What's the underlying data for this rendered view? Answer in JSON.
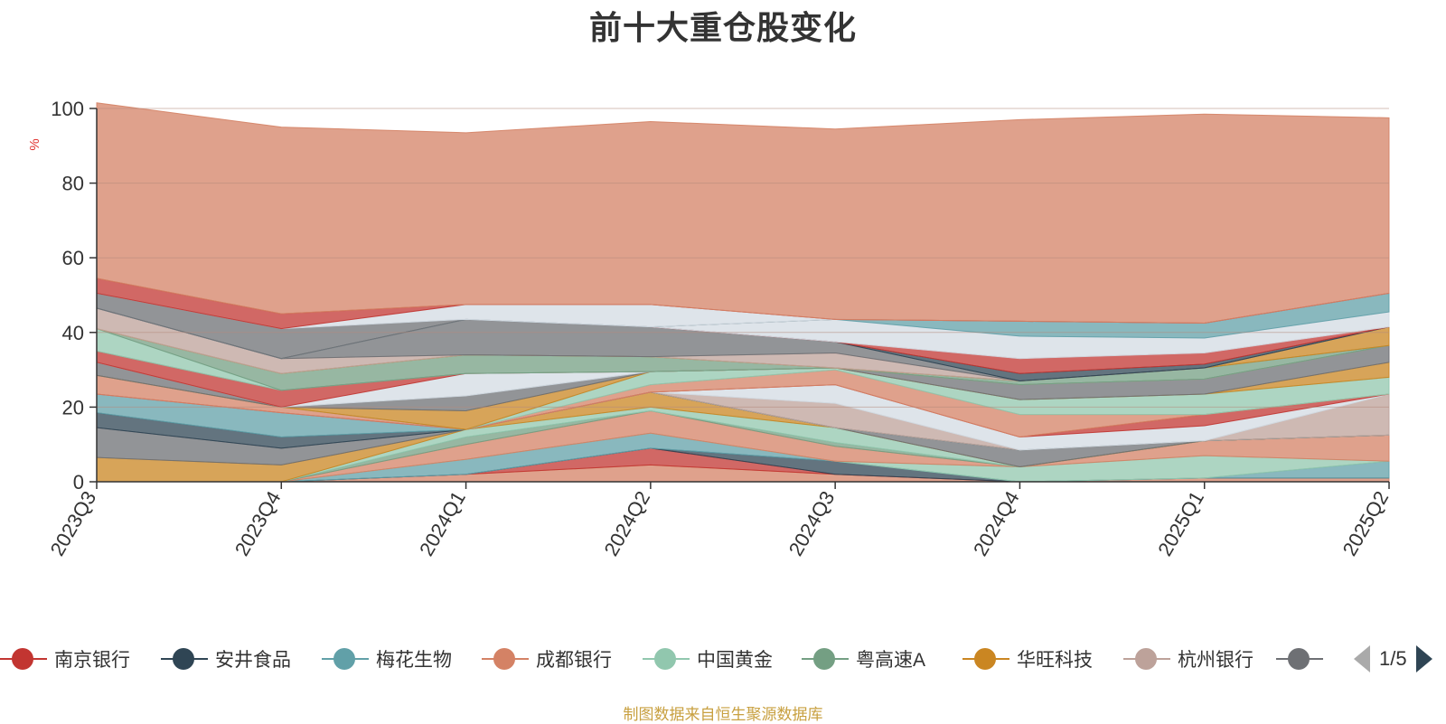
{
  "chart_data": {
    "type": "area",
    "title": "前十大重仓股变化",
    "ylabel": "%",
    "ylim": [
      0,
      100
    ],
    "yticks": [
      0,
      20,
      40,
      60,
      80,
      100
    ],
    "categories": [
      "2023Q3",
      "2023Q4",
      "2024Q1",
      "2024Q2",
      "2024Q3",
      "2024Q4",
      "2025Q1",
      "2025Q2"
    ],
    "grid": true,
    "legend_position": "bottom",
    "legend_page": "1/5",
    "legend": [
      {
        "name": "南京银行",
        "color": "#c23531"
      },
      {
        "name": "安井食品",
        "color": "#2f4554"
      },
      {
        "name": "梅花生物",
        "color": "#61a0a8"
      },
      {
        "name": "成都银行",
        "color": "#d48265"
      },
      {
        "name": "中国黄金",
        "color": "#91c7ae"
      },
      {
        "name": "粤高速A",
        "color": "#749f83"
      },
      {
        "name": "华旺科技",
        "color": "#ca8622"
      },
      {
        "name": "杭州银行",
        "color": "#bda29a"
      },
      {
        "name": "",
        "color": "#6e7074"
      }
    ],
    "layers": [
      {
        "color": "#d48265",
        "values": [
          0,
          0,
          2,
          4.5,
          2,
          0,
          1,
          1
        ]
      },
      {
        "color": "#c23531",
        "values": [
          0,
          0,
          0,
          4.5,
          0,
          0,
          0,
          0
        ]
      },
      {
        "color": "#2f4554",
        "values": [
          0,
          0,
          0,
          0,
          3.5,
          0,
          0,
          0
        ]
      },
      {
        "color": "#61a0a8",
        "values": [
          0,
          0,
          4,
          4,
          0,
          0,
          0,
          4.5
        ]
      },
      {
        "color": "#91c7ae",
        "values": [
          0,
          0,
          0,
          0,
          0,
          4,
          6,
          0
        ]
      },
      {
        "color": "#d48265",
        "values": [
          0,
          0,
          4,
          6,
          4,
          0,
          4,
          7
        ]
      },
      {
        "color": "#749f83",
        "values": [
          0,
          0,
          2,
          0,
          1,
          0,
          0,
          0
        ]
      },
      {
        "color": "#91c7ae",
        "values": [
          0,
          0,
          2,
          1,
          4,
          0,
          0,
          0
        ]
      },
      {
        "color": "#ca8622",
        "values": [
          6.5,
          4.5,
          0,
          4,
          0,
          0,
          0,
          0
        ]
      },
      {
        "color": "#6e7074",
        "values": [
          8,
          4.5,
          0,
          0,
          0,
          4.5,
          0,
          0
        ]
      },
      {
        "color": "#2f4554",
        "values": [
          4,
          3,
          0,
          0,
          0,
          0,
          0,
          0
        ]
      },
      {
        "color": "#61a0a8",
        "values": [
          5,
          6.5,
          0,
          0,
          0,
          0,
          0,
          0
        ]
      },
      {
        "color": "#bda29a",
        "values": [
          0,
          0,
          0,
          0,
          6.5,
          0,
          0,
          11
        ]
      },
      {
        "color": "#d3dbe3",
        "values": [
          0,
          0,
          0,
          0,
          5,
          3.5,
          4,
          0
        ]
      },
      {
        "color": "#c23531",
        "values": [
          0,
          0,
          0,
          0,
          0,
          0,
          3,
          0
        ]
      },
      {
        "color": "#d48265",
        "values": [
          5,
          1.5,
          0,
          2,
          4,
          6,
          0,
          0
        ]
      },
      {
        "color": "#91c7ae",
        "values": [
          0,
          0,
          0,
          3.5,
          0.5,
          4,
          5.5,
          4.5
        ]
      },
      {
        "color": "#ca8622",
        "values": [
          0,
          0,
          5,
          0,
          0,
          0,
          0,
          4
        ]
      },
      {
        "color": "#6e7074",
        "values": [
          3.5,
          0,
          4,
          0,
          0,
          4,
          4,
          4.5
        ]
      },
      {
        "color": "#d3dbe3",
        "values": [
          0,
          0,
          6,
          0,
          0,
          0,
          0,
          0
        ]
      },
      {
        "color": "#c23531",
        "values": [
          3,
          4.5,
          0,
          0,
          0,
          0,
          0,
          0
        ]
      },
      {
        "color": "#91c7ae",
        "values": [
          6,
          0,
          0,
          0,
          0,
          0,
          0,
          0
        ]
      },
      {
        "color": "#749f83",
        "values": [
          0,
          4.5,
          5,
          4,
          0,
          1,
          3,
          0
        ]
      },
      {
        "color": "#ca8622",
        "values": [
          0,
          0,
          0,
          0,
          0,
          0,
          0,
          5
        ]
      },
      {
        "color": "#bda29a",
        "values": [
          5.5,
          4,
          0,
          0,
          4,
          0,
          0,
          0
        ]
      },
      {
        "color": "#6e7074",
        "values": [
          0,
          0,
          9.5,
          8,
          3,
          0,
          0,
          0
        ]
      },
      {
        "color": "#2f4554",
        "values": [
          0,
          0,
          0,
          0,
          0,
          2,
          1,
          0
        ]
      },
      {
        "color": "#c23531",
        "values": [
          0,
          0,
          0,
          0,
          0,
          4,
          3,
          0
        ]
      },
      {
        "color": "#d3dbe3",
        "values": [
          0,
          0,
          0,
          0,
          6,
          6,
          4,
          4
        ]
      },
      {
        "color": "#61a0a8",
        "values": [
          0,
          0,
          0,
          0,
          0,
          4,
          4,
          5
        ]
      },
      {
        "color": "#6e7074",
        "values": [
          4,
          8,
          0,
          0,
          0,
          0,
          0,
          0
        ]
      },
      {
        "color": "#d3dbe3",
        "values": [
          0,
          0,
          4,
          6,
          0,
          0,
          0,
          0
        ]
      },
      {
        "color": "#c23531",
        "values": [
          4,
          4,
          0,
          0,
          0,
          0,
          0,
          0
        ]
      },
      {
        "color": "#d48265",
        "values": [
          47,
          50,
          46,
          49,
          51,
          54,
          56,
          47
        ]
      }
    ]
  },
  "footnote": "制图数据来自恒生聚源数据库"
}
